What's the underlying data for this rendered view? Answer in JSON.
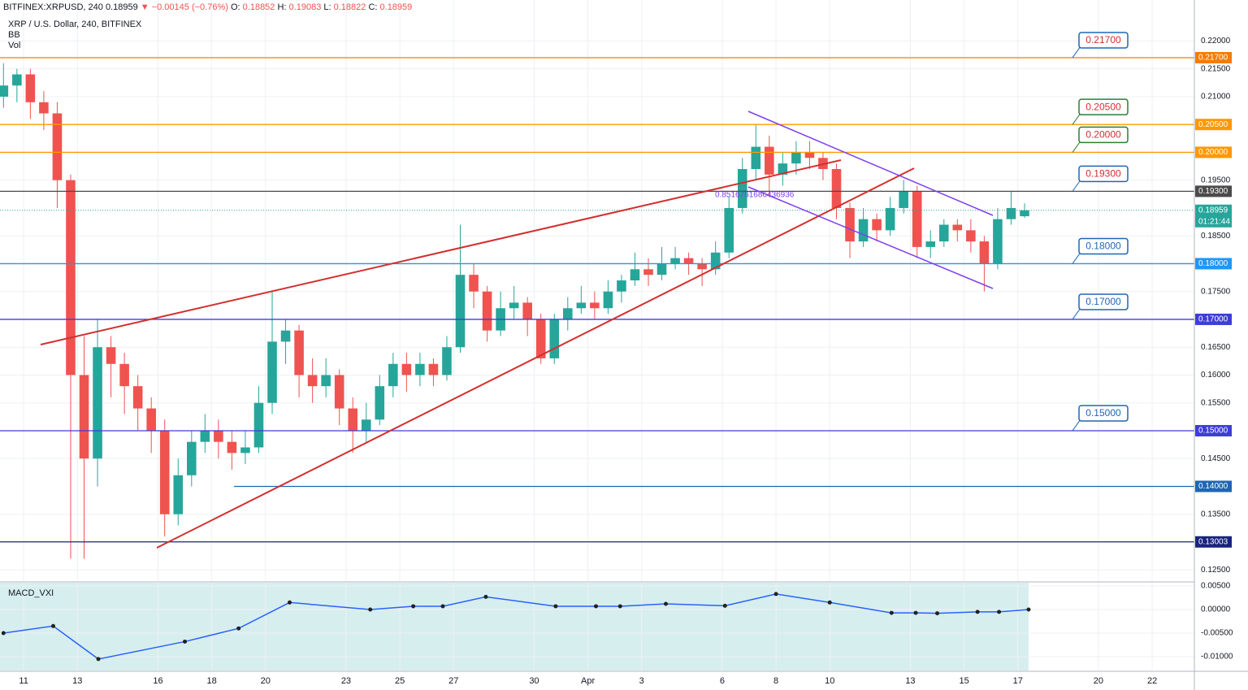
{
  "header": {
    "symbol": "BITFINEX:XRPUSD, 240",
    "last": 0.18959,
    "change": "▼ −0.00145 (−0.76%)",
    "open_label": "O:",
    "open": 0.18852,
    "high_label": "H:",
    "high": 0.19083,
    "low_label": "L:",
    "low": 0.18822,
    "close_label": "C:",
    "close": 0.18959
  },
  "legend": [
    "XRP / U.S. Dollar, 240, BITFINEX",
    "BB",
    "Vol"
  ],
  "fib_label": "0.8516761686436936",
  "chart_data": {
    "type": "candlestick",
    "xlim": [
      -0.88,
      43.57
    ],
    "ylim": [
      0.12299,
      0.22736
    ],
    "xticks": [
      {
        "value": 0,
        "label": "11"
      },
      {
        "value": 2,
        "label": "13"
      },
      {
        "value": 5,
        "label": "16"
      },
      {
        "value": 7,
        "label": "18"
      },
      {
        "value": 9,
        "label": "20"
      },
      {
        "value": 12,
        "label": "23"
      },
      {
        "value": 14,
        "label": "25"
      },
      {
        "value": 16,
        "label": "27"
      },
      {
        "value": 19,
        "label": "30"
      },
      {
        "value": 21,
        "label": "Apr"
      },
      {
        "value": 23,
        "label": "3"
      },
      {
        "value": 26,
        "label": "6"
      },
      {
        "value": 28,
        "label": "8"
      },
      {
        "value": 30,
        "label": "10"
      },
      {
        "value": 33,
        "label": "13"
      },
      {
        "value": 35,
        "label": "15"
      },
      {
        "value": 37,
        "label": "17"
      },
      {
        "value": 40,
        "label": "20"
      },
      {
        "value": 42,
        "label": "22"
      }
    ],
    "yticks": [
      {
        "value": 0.125,
        "label": "0.12500"
      },
      {
        "value": 0.135,
        "label": "0.13500"
      },
      {
        "value": 0.145,
        "label": "0.14500"
      },
      {
        "value": 0.155,
        "label": "0.15500"
      },
      {
        "value": 0.16,
        "label": "0.16000"
      },
      {
        "value": 0.165,
        "label": "0.16500"
      },
      {
        "value": 0.175,
        "label": "0.17500"
      },
      {
        "value": 0.185,
        "label": "0.18500"
      },
      {
        "value": 0.195,
        "label": "0.19500"
      },
      {
        "value": 0.21,
        "label": "0.21000"
      },
      {
        "value": 0.215,
        "label": "0.21500"
      },
      {
        "value": 0.22,
        "label": "0.22000"
      }
    ],
    "grid": true,
    "up_color": "#26a69a",
    "down_color": "#ef5350",
    "candles": {
      "x": [
        -0.75,
        -0.25,
        0.25,
        0.75,
        1.25,
        1.75,
        2.25,
        2.75,
        3.25,
        3.75,
        4.25,
        4.75,
        5.25,
        5.75,
        6.25,
        6.75,
        7.25,
        7.75,
        8.25,
        8.75,
        9.25,
        9.75,
        10.25,
        10.75,
        11.25,
        11.75,
        12.25,
        12.75,
        13.25,
        13.75,
        14.25,
        14.75,
        15.25,
        15.75,
        16.25,
        16.75,
        17.25,
        17.75,
        18.25,
        18.75,
        19.25,
        19.75,
        20.25,
        20.75,
        21.25,
        21.75,
        22.25,
        22.75,
        23.25,
        23.75,
        24.25,
        24.75,
        25.25,
        25.75,
        26.25,
        26.75,
        27.25,
        27.75,
        28.25,
        28.75,
        29.25,
        29.75,
        30.25,
        30.75,
        31.25,
        31.75,
        32.25,
        32.75,
        33.25,
        33.75,
        34.25,
        34.75,
        35.25,
        35.75,
        36.25,
        36.75,
        37.25
      ],
      "ohlc": [
        [
          0.21,
          0.216,
          0.208,
          0.212
        ],
        [
          0.212,
          0.215,
          0.209,
          0.214
        ],
        [
          0.214,
          0.215,
          0.206,
          0.209
        ],
        [
          0.209,
          0.211,
          0.204,
          0.207
        ],
        [
          0.207,
          0.209,
          0.19,
          0.195
        ],
        [
          0.195,
          0.196,
          0.127,
          0.16
        ],
        [
          0.16,
          0.167,
          0.127,
          0.145
        ],
        [
          0.145,
          0.17,
          0.14,
          0.165
        ],
        [
          0.165,
          0.167,
          0.156,
          0.162
        ],
        [
          0.162,
          0.164,
          0.153,
          0.158
        ],
        [
          0.158,
          0.16,
          0.15,
          0.154
        ],
        [
          0.154,
          0.156,
          0.146,
          0.15
        ],
        [
          0.15,
          0.152,
          0.131,
          0.135
        ],
        [
          0.135,
          0.145,
          0.133,
          0.142
        ],
        [
          0.142,
          0.15,
          0.14,
          0.148
        ],
        [
          0.148,
          0.153,
          0.146,
          0.15
        ],
        [
          0.15,
          0.152,
          0.145,
          0.148
        ],
        [
          0.148,
          0.15,
          0.143,
          0.146
        ],
        [
          0.146,
          0.15,
          0.144,
          0.147
        ],
        [
          0.147,
          0.158,
          0.146,
          0.155
        ],
        [
          0.155,
          0.175,
          0.153,
          0.166
        ],
        [
          0.166,
          0.17,
          0.162,
          0.168
        ],
        [
          0.168,
          0.169,
          0.156,
          0.16
        ],
        [
          0.16,
          0.163,
          0.155,
          0.158
        ],
        [
          0.158,
          0.163,
          0.156,
          0.16
        ],
        [
          0.16,
          0.161,
          0.151,
          0.154
        ],
        [
          0.154,
          0.156,
          0.146,
          0.15
        ],
        [
          0.15,
          0.155,
          0.148,
          0.152
        ],
        [
          0.152,
          0.16,
          0.151,
          0.158
        ],
        [
          0.158,
          0.164,
          0.156,
          0.162
        ],
        [
          0.162,
          0.164,
          0.157,
          0.16
        ],
        [
          0.16,
          0.164,
          0.158,
          0.162
        ],
        [
          0.162,
          0.163,
          0.158,
          0.16
        ],
        [
          0.16,
          0.167,
          0.159,
          0.165
        ],
        [
          0.165,
          0.187,
          0.164,
          0.178
        ],
        [
          0.178,
          0.18,
          0.172,
          0.175
        ],
        [
          0.175,
          0.176,
          0.166,
          0.168
        ],
        [
          0.168,
          0.175,
          0.167,
          0.172
        ],
        [
          0.172,
          0.176,
          0.17,
          0.173
        ],
        [
          0.173,
          0.174,
          0.167,
          0.17
        ],
        [
          0.17,
          0.171,
          0.162,
          0.163
        ],
        [
          0.163,
          0.171,
          0.162,
          0.17
        ],
        [
          0.17,
          0.174,
          0.168,
          0.172
        ],
        [
          0.172,
          0.176,
          0.171,
          0.173
        ],
        [
          0.173,
          0.175,
          0.17,
          0.172
        ],
        [
          0.172,
          0.177,
          0.171,
          0.175
        ],
        [
          0.175,
          0.178,
          0.173,
          0.177
        ],
        [
          0.177,
          0.182,
          0.176,
          0.179
        ],
        [
          0.179,
          0.181,
          0.176,
          0.178
        ],
        [
          0.178,
          0.183,
          0.177,
          0.18
        ],
        [
          0.18,
          0.183,
          0.179,
          0.181
        ],
        [
          0.181,
          0.182,
          0.178,
          0.18
        ],
        [
          0.18,
          0.181,
          0.176,
          0.179
        ],
        [
          0.179,
          0.184,
          0.178,
          0.182
        ],
        [
          0.182,
          0.192,
          0.181,
          0.19
        ],
        [
          0.19,
          0.199,
          0.189,
          0.197
        ],
        [
          0.197,
          0.205,
          0.195,
          0.201
        ],
        [
          0.201,
          0.203,
          0.192,
          0.196
        ],
        [
          0.196,
          0.2,
          0.194,
          0.198
        ],
        [
          0.198,
          0.202,
          0.196,
          0.2
        ],
        [
          0.2,
          0.202,
          0.197,
          0.199
        ],
        [
          0.199,
          0.2,
          0.195,
          0.197
        ],
        [
          0.197,
          0.198,
          0.188,
          0.19
        ],
        [
          0.19,
          0.191,
          0.181,
          0.184
        ],
        [
          0.184,
          0.19,
          0.183,
          0.188
        ],
        [
          0.188,
          0.189,
          0.184,
          0.186
        ],
        [
          0.186,
          0.192,
          0.185,
          0.19
        ],
        [
          0.19,
          0.195,
          0.189,
          0.193
        ],
        [
          0.193,
          0.194,
          0.181,
          0.183
        ],
        [
          0.183,
          0.186,
          0.181,
          0.184
        ],
        [
          0.184,
          0.188,
          0.183,
          0.187
        ],
        [
          0.187,
          0.188,
          0.184,
          0.186
        ],
        [
          0.186,
          0.188,
          0.182,
          0.184
        ],
        [
          0.184,
          0.185,
          0.175,
          0.18
        ],
        [
          0.18,
          0.19,
          0.179,
          0.188
        ],
        [
          0.188,
          0.193,
          0.187,
          0.19
        ],
        [
          0.18852,
          0.19083,
          0.18822,
          0.18959
        ]
      ]
    },
    "levels": [
      {
        "price": 0.217,
        "label": "0.21700",
        "color": "#f57c00",
        "callout": true,
        "callout_color": "#d32f2f",
        "callout_border": "#1e66b5"
      },
      {
        "price": 0.205,
        "label": "0.20500",
        "color": "#ff9800",
        "callout": true,
        "callout_color": "#d32f2f",
        "callout_border": "#2e7d32"
      },
      {
        "price": 0.2,
        "label": "0.20000",
        "color": "#ff9800",
        "callout": true,
        "callout_color": "#d32f2f",
        "callout_border": "#2e7d32"
      },
      {
        "price": 0.193,
        "label": "0.19300",
        "color": "#4a4a4a",
        "callout": true,
        "callout_color": "#d32f2f",
        "callout_border": "#1e66b5"
      },
      {
        "price": 0.18,
        "label": "0.18000",
        "color": "#2196f3",
        "callout": true,
        "callout_color": "#1e66b5",
        "callout_border": "#1e66b5"
      },
      {
        "price": 0.17,
        "label": "0.17000",
        "color": "#3d3dd8",
        "callout": true,
        "callout_color": "#1e66b5",
        "callout_border": "#1e66b5"
      },
      {
        "price": 0.15,
        "label": "0.15000",
        "color": "#3d3dd8",
        "callout": true,
        "callout_color": "#1e66b5",
        "callout_border": "#1e66b5"
      },
      {
        "price": 0.14,
        "label": "0.14000",
        "color": "#1e66b5",
        "callout": false,
        "x_start": 7.83
      },
      {
        "price": 0.13003,
        "label": "0.13003",
        "color": "#1a237e",
        "callout": false
      }
    ],
    "last_price": 0.18959,
    "last_color": "#26a69a",
    "countdown": "01:21:44",
    "macd": {
      "name": "MACD_VXI",
      "color": "#2962ff",
      "ylim": [
        -0.01293,
        0.00569
      ],
      "yticks": [
        {
          "value": 0.005,
          "label": "0.00500"
        },
        {
          "value": 0,
          "label": "0.00000"
        },
        {
          "value": -0.005,
          "label": "-0.00500"
        },
        {
          "value": -0.01,
          "label": "-0.01000"
        }
      ],
      "x": [
        -0.75,
        1.1,
        2.78,
        6,
        8,
        9.9,
        12.9,
        14.5,
        15.6,
        17.2,
        19.8,
        21.3,
        22.2,
        23.9,
        26.1,
        28,
        30,
        32.3,
        33.2,
        34,
        35.5,
        36.3,
        37.4
      ],
      "values": [
        -0.005,
        -0.0035,
        -0.0105,
        -0.0068,
        -0.004,
        0.0015,
        0,
        0.0007,
        0.0007,
        0.0027,
        0.0007,
        0.0007,
        0.0007,
        0.0012,
        0.0008,
        0.0033,
        0.0015,
        -0.0007,
        -0.0007,
        -0.0008,
        -0.0005,
        -0.0005,
        0
      ]
    }
  }
}
